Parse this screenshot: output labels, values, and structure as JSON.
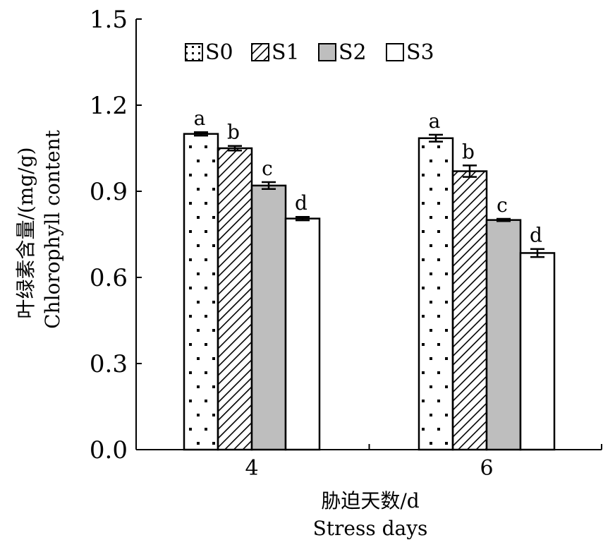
{
  "chart_data": {
    "type": "bar",
    "categories": [
      "4",
      "6"
    ],
    "series": [
      {
        "name": "S0",
        "values": [
          1.1,
          1.085
        ],
        "errors": [
          0.006,
          0.012
        ],
        "letters": [
          "a",
          "a"
        ],
        "fill": "dots"
      },
      {
        "name": "S1",
        "values": [
          1.05,
          0.97
        ],
        "errors": [
          0.008,
          0.02
        ],
        "letters": [
          "b",
          "b"
        ],
        "fill": "hatch"
      },
      {
        "name": "S2",
        "values": [
          0.92,
          0.8
        ],
        "errors": [
          0.012,
          0.004
        ],
        "letters": [
          "c",
          "c"
        ],
        "fill": "gray"
      },
      {
        "name": "S3",
        "values": [
          0.805,
          0.685
        ],
        "errors": [
          0.006,
          0.014
        ],
        "letters": [
          "d",
          "d"
        ],
        "fill": "white"
      }
    ],
    "yticks": [
      "0.0",
      "0.3",
      "0.6",
      "0.9",
      "1.2",
      "1.5"
    ],
    "ylim": [
      0,
      1.5
    ],
    "xlabel_cn": "胁迫天数/d",
    "xlabel_en": "Stress days",
    "ylabel_cn": "叶绿素含量/(mg/g)",
    "ylabel_en": "Chlorophyll content",
    "legend_position": "top",
    "grid": false,
    "colors": {
      "gray_fill": "#bebebe",
      "stroke": "#000000"
    }
  }
}
